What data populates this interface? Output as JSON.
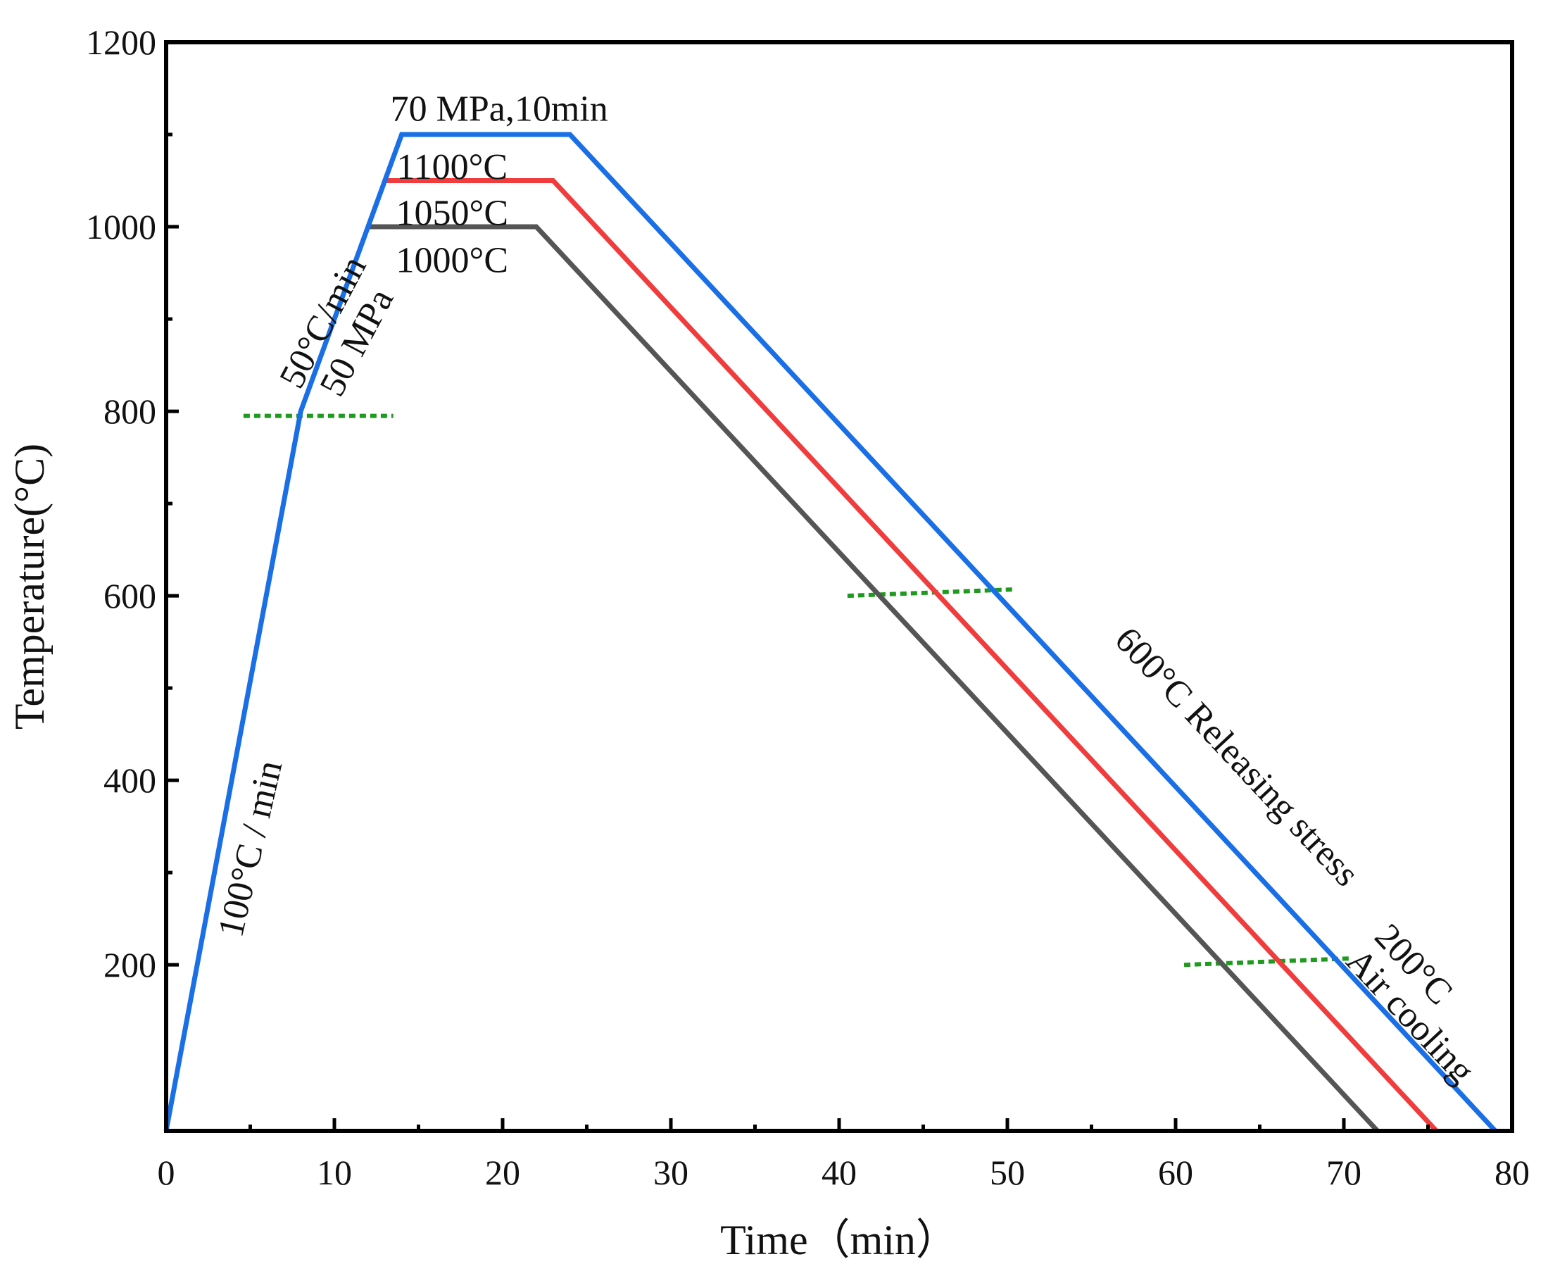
{
  "chart_data": {
    "type": "line",
    "title": "",
    "xlabel": "Time（min）",
    "ylabel": "Temperature(°C)",
    "xlim": [
      0,
      80
    ],
    "ylim": [
      20,
      1200
    ],
    "xticks": [
      0,
      10,
      20,
      30,
      40,
      50,
      60,
      70,
      80
    ],
    "yticks": [
      200,
      400,
      600,
      800,
      1000,
      1200
    ],
    "grid": false,
    "series": [
      {
        "name": "1100°C",
        "color": "#1a6fe6",
        "points": [
          [
            0,
            20
          ],
          [
            8,
            800
          ],
          [
            14,
            1100
          ],
          [
            24,
            1100
          ],
          [
            79,
            20
          ]
        ]
      },
      {
        "name": "1050°C",
        "color": "#f03c3c",
        "points": [
          [
            13,
            1050
          ],
          [
            23,
            1050
          ],
          [
            75.5,
            20
          ]
        ]
      },
      {
        "name": "1000°C",
        "color": "#555555",
        "points": [
          [
            12,
            1000
          ],
          [
            22,
            1000
          ],
          [
            72,
            20
          ]
        ]
      }
    ],
    "reference_lines": [
      {
        "name": "800",
        "color": "#1f9a1f",
        "points": [
          [
            4.6,
            795
          ],
          [
            13.5,
            795
          ]
        ]
      },
      {
        "name": "600",
        "color": "#1f9a1f",
        "points": [
          [
            40.5,
            600
          ],
          [
            50.5,
            607
          ]
        ]
      },
      {
        "name": "200",
        "color": "#1f9a1f",
        "points": [
          [
            60.5,
            200
          ],
          [
            70.5,
            207
          ]
        ]
      }
    ],
    "annotations": [
      {
        "text": "70 MPa,10min",
        "x": 19.8,
        "y": 1124,
        "rotate": 0
      },
      {
        "text": "1100°C",
        "x": 17,
        "y": 1061,
        "rotate": 0
      },
      {
        "text": "1050°C",
        "x": 17,
        "y": 1011,
        "rotate": 0
      },
      {
        "text": "1000°C",
        "x": 17,
        "y": 960,
        "rotate": 0
      },
      {
        "text": "50°C/min",
        "x": 9.5,
        "y": 895,
        "rotate": -62
      },
      {
        "text": "50 MPa",
        "x": 11.5,
        "y": 873,
        "rotate": -62
      },
      {
        "text": "100°C / min",
        "x": 5.2,
        "y": 325,
        "rotate": -77
      },
      {
        "text": "600°C Releasing stress",
        "x": 63.5,
        "y": 423,
        "rotate": 47
      },
      {
        "text": "200°C",
        "x": 74,
        "y": 198,
        "rotate": 47
      },
      {
        "text": "Air cooling",
        "x": 73.8,
        "y": 142,
        "rotate": 47
      }
    ]
  }
}
